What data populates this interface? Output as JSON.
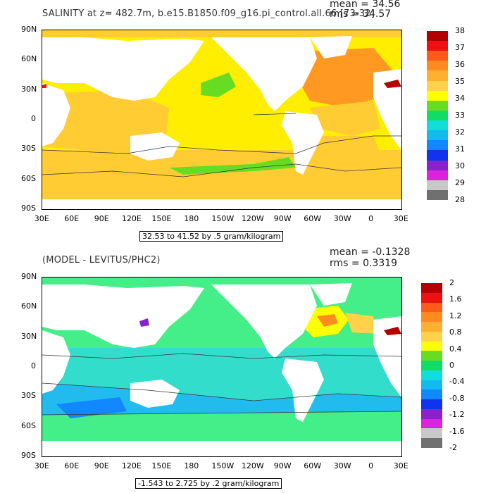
{
  "panel1": {
    "title": "SALINITY at z= 482.7m, b.e15.B1850.f09_g16.pi_control.all.66 [73-32]",
    "mean_text": "mean = 34.56",
    "rms_text": "rms = 34.57",
    "lat_labels": [
      "90N",
      "60N",
      "30N",
      "0",
      "30S",
      "60S",
      "90S"
    ],
    "lon_labels": [
      "30E",
      "60E",
      "90E",
      "120E",
      "150E",
      "180",
      "150W",
      "120W",
      "90W",
      "60W",
      "30W",
      "0",
      "30E"
    ],
    "range_text": "32.53 to 41.52 by .5 gram/kilogram",
    "colorbar": {
      "labels": [
        "38",
        "37",
        "36",
        "35",
        "34",
        "33",
        "32",
        "31",
        "30",
        "29",
        "28"
      ],
      "colors": [
        "#b30000",
        "#ee1111",
        "#ff5a1a",
        "#ff8a20",
        "#ffb030",
        "#ffd24a",
        "#ffff00",
        "#66dd22",
        "#11dd66",
        "#11dddd",
        "#11bbee",
        "#1188ff",
        "#1133ee",
        "#8822cc",
        "#dd22dd",
        "#c8c8c8",
        "#707070"
      ]
    }
  },
  "panel2": {
    "title": "(MODEL - LEVITUS/PHC2)",
    "mean_text": "mean = -0.1328",
    "rms_text": "rms = 0.3319",
    "lat_labels": [
      "90N",
      "60N",
      "30N",
      "0",
      "30S",
      "60S",
      "90S"
    ],
    "lon_labels": [
      "30E",
      "60E",
      "90E",
      "120E",
      "150E",
      "180",
      "150W",
      "120W",
      "90W",
      "60W",
      "30W",
      "0",
      "30E"
    ],
    "range_text": "-1.543 to 2.725 by .2 gram/kilogram",
    "colorbar": {
      "labels": [
        "2",
        "1.6",
        "1.2",
        "0.8",
        "0.4",
        "0",
        "-0.4",
        "-0.8",
        "-1.2",
        "-1.6",
        "-2"
      ],
      "colors": [
        "#b30000",
        "#ee1111",
        "#ff5a1a",
        "#ff8a20",
        "#ffb030",
        "#ffd24a",
        "#ffff00",
        "#66dd22",
        "#11dd66",
        "#11dddd",
        "#11bbee",
        "#1188ff",
        "#1133ee",
        "#8822cc",
        "#dd22dd",
        "#c8c8c8",
        "#707070"
      ]
    }
  },
  "colors": {
    "land": "#ffffff",
    "ocean1": "#ffee00",
    "ocean1_south": "#ffcc33",
    "ocean1_atlantic": "#ff9922",
    "ocean2": "#44ee88",
    "ocean2_south": "#33ddcc",
    "ocean2_deep": "#22bbee"
  }
}
